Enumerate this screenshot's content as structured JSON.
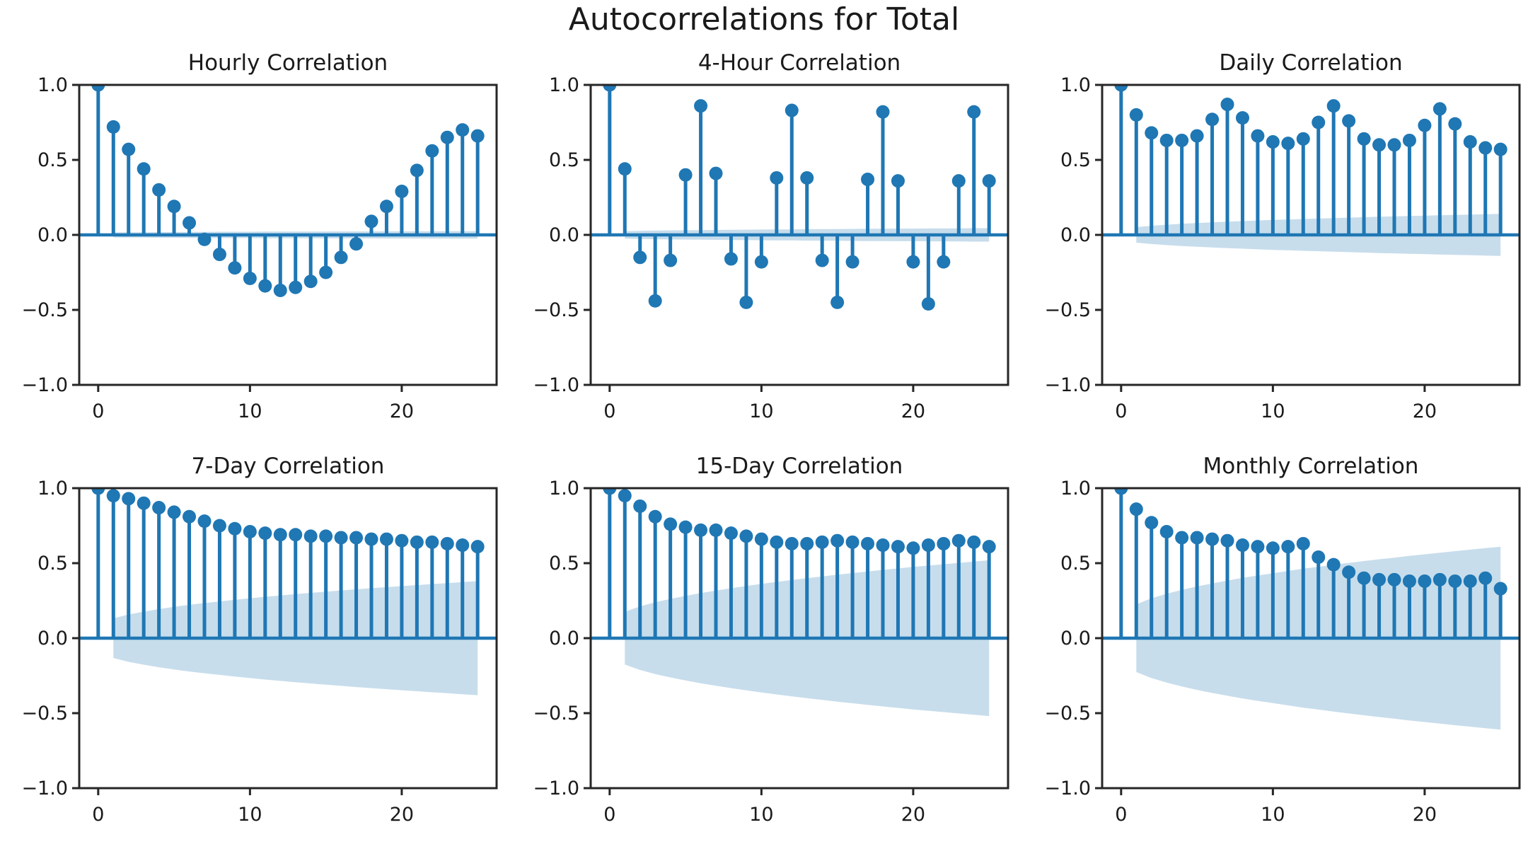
{
  "figure": {
    "suptitle": "Autocorrelations for Total",
    "colors": {
      "stem": "#1f77b4",
      "band": "#1f77b4",
      "band_opacity": 0.25,
      "text": "#1a1a1a",
      "spine": "#262626",
      "background": "#ffffff"
    }
  },
  "chart_data": [
    {
      "type": "stem",
      "title": "Hourly Correlation",
      "xlabel": "",
      "ylabel": "",
      "x": [
        0,
        1,
        2,
        3,
        4,
        5,
        6,
        7,
        8,
        9,
        10,
        11,
        12,
        13,
        14,
        15,
        16,
        17,
        18,
        19,
        20,
        21,
        22,
        23,
        24,
        25
      ],
      "values": [
        1.0,
        0.72,
        0.57,
        0.44,
        0.3,
        0.19,
        0.08,
        -0.03,
        -0.13,
        -0.22,
        -0.29,
        -0.34,
        -0.37,
        -0.35,
        -0.31,
        -0.25,
        -0.15,
        -0.06,
        0.09,
        0.19,
        0.29,
        0.43,
        0.56,
        0.65,
        0.7,
        0.66
      ],
      "ci": [
        0.015,
        0.017,
        0.018,
        0.018,
        0.019,
        0.019,
        0.02,
        0.02,
        0.021,
        0.021,
        0.021,
        0.022,
        0.022,
        0.022,
        0.022,
        0.023,
        0.023,
        0.023,
        0.023,
        0.024,
        0.024,
        0.024,
        0.024,
        0.025,
        0.025,
        0.025
      ],
      "xticks": [
        0,
        10,
        20
      ],
      "xtick_labels": [
        "0",
        "10",
        "20"
      ],
      "yticks": [
        1.0,
        0.5,
        0.0,
        -0.5,
        -1.0
      ],
      "ytick_labels": [
        "1.0",
        "0.5",
        "0.0",
        "−0.5",
        "−1.0"
      ],
      "xlim": [
        -1.25,
        26.25
      ],
      "ylim": [
        -1,
        1
      ],
      "grid": false,
      "legend": null
    },
    {
      "type": "stem",
      "title": "4-Hour Correlation",
      "xlabel": "",
      "ylabel": "",
      "x": [
        0,
        1,
        2,
        3,
        4,
        5,
        6,
        7,
        8,
        9,
        10,
        11,
        12,
        13,
        14,
        15,
        16,
        17,
        18,
        19,
        20,
        21,
        22,
        23,
        24,
        25
      ],
      "values": [
        1.0,
        0.44,
        -0.15,
        -0.44,
        -0.17,
        0.4,
        0.86,
        0.41,
        -0.16,
        -0.45,
        -0.18,
        0.38,
        0.83,
        0.38,
        -0.17,
        -0.45,
        -0.18,
        0.37,
        0.82,
        0.36,
        -0.18,
        -0.46,
        -0.18,
        0.36,
        0.82,
        0.36
      ],
      "ci": [
        0.02,
        0.025,
        0.027,
        0.029,
        0.03,
        0.031,
        0.032,
        0.033,
        0.034,
        0.035,
        0.036,
        0.037,
        0.037,
        0.038,
        0.039,
        0.039,
        0.04,
        0.041,
        0.041,
        0.042,
        0.042,
        0.043,
        0.043,
        0.044,
        0.045,
        0.045
      ],
      "xticks": [
        0,
        10,
        20
      ],
      "xtick_labels": [
        "0",
        "10",
        "20"
      ],
      "yticks": [
        1.0,
        0.5,
        0.0,
        -0.5,
        -1.0
      ],
      "ytick_labels": [
        "1.0",
        "0.5",
        "0.0",
        "−0.5",
        "−1.0"
      ],
      "xlim": [
        -1.25,
        26.25
      ],
      "ylim": [
        -1,
        1
      ],
      "grid": false,
      "legend": null
    },
    {
      "type": "stem",
      "title": "Daily Correlation",
      "xlabel": "",
      "ylabel": "",
      "x": [
        0,
        1,
        2,
        3,
        4,
        5,
        6,
        7,
        8,
        9,
        10,
        11,
        12,
        13,
        14,
        15,
        16,
        17,
        18,
        19,
        20,
        21,
        22,
        23,
        24,
        25
      ],
      "values": [
        1.0,
        0.8,
        0.68,
        0.63,
        0.63,
        0.66,
        0.77,
        0.87,
        0.78,
        0.66,
        0.62,
        0.61,
        0.64,
        0.75,
        0.86,
        0.76,
        0.64,
        0.6,
        0.6,
        0.63,
        0.73,
        0.84,
        0.74,
        0.62,
        0.58,
        0.57
      ],
      "ci": [
        0.03,
        0.052,
        0.061,
        0.068,
        0.074,
        0.079,
        0.084,
        0.088,
        0.092,
        0.096,
        0.1,
        0.103,
        0.106,
        0.109,
        0.112,
        0.115,
        0.118,
        0.121,
        0.123,
        0.126,
        0.128,
        0.131,
        0.133,
        0.135,
        0.138,
        0.14
      ],
      "xticks": [
        0,
        10,
        20
      ],
      "xtick_labels": [
        "0",
        "10",
        "20"
      ],
      "yticks": [
        1.0,
        0.5,
        0.0,
        -0.5,
        -1.0
      ],
      "ytick_labels": [
        "1.0",
        "0.5",
        "0.0",
        "−0.5",
        "−1.0"
      ],
      "xlim": [
        -1.25,
        26.25
      ],
      "ylim": [
        -1,
        1
      ],
      "grid": false,
      "legend": null
    },
    {
      "type": "stem",
      "title": "7-Day Correlation",
      "xlabel": "",
      "ylabel": "",
      "x": [
        0,
        1,
        2,
        3,
        4,
        5,
        6,
        7,
        8,
        9,
        10,
        11,
        12,
        13,
        14,
        15,
        16,
        17,
        18,
        19,
        20,
        21,
        22,
        23,
        24,
        25
      ],
      "values": [
        1.0,
        0.95,
        0.93,
        0.9,
        0.87,
        0.84,
        0.81,
        0.78,
        0.75,
        0.73,
        0.71,
        0.7,
        0.69,
        0.69,
        0.68,
        0.68,
        0.67,
        0.67,
        0.66,
        0.66,
        0.65,
        0.64,
        0.64,
        0.63,
        0.62,
        0.61
      ],
      "ci": [
        0.07,
        0.132,
        0.158,
        0.177,
        0.194,
        0.209,
        0.222,
        0.234,
        0.245,
        0.256,
        0.266,
        0.276,
        0.285,
        0.294,
        0.302,
        0.31,
        0.318,
        0.326,
        0.333,
        0.34,
        0.347,
        0.354,
        0.361,
        0.367,
        0.374,
        0.38
      ],
      "xticks": [
        0,
        10,
        20
      ],
      "xtick_labels": [
        "0",
        "10",
        "20"
      ],
      "yticks": [
        1.0,
        0.5,
        0.0,
        -0.5,
        -1.0
      ],
      "ytick_labels": [
        "1.0",
        "0.5",
        "0.0",
        "−0.5",
        "−1.0"
      ],
      "xlim": [
        -1.25,
        26.25
      ],
      "ylim": [
        -1,
        1
      ],
      "grid": false,
      "legend": null
    },
    {
      "type": "stem",
      "title": "15-Day Correlation",
      "xlabel": "",
      "ylabel": "",
      "x": [
        0,
        1,
        2,
        3,
        4,
        5,
        6,
        7,
        8,
        9,
        10,
        11,
        12,
        13,
        14,
        15,
        16,
        17,
        18,
        19,
        20,
        21,
        22,
        23,
        24,
        25
      ],
      "values": [
        1.0,
        0.95,
        0.88,
        0.81,
        0.76,
        0.74,
        0.72,
        0.72,
        0.7,
        0.68,
        0.66,
        0.64,
        0.63,
        0.63,
        0.64,
        0.65,
        0.64,
        0.63,
        0.62,
        0.61,
        0.6,
        0.62,
        0.63,
        0.65,
        0.64,
        0.61
      ],
      "ci": [
        0.09,
        0.176,
        0.212,
        0.239,
        0.262,
        0.282,
        0.301,
        0.317,
        0.333,
        0.348,
        0.362,
        0.375,
        0.388,
        0.4,
        0.412,
        0.423,
        0.434,
        0.445,
        0.455,
        0.465,
        0.475,
        0.484,
        0.493,
        0.502,
        0.511,
        0.52
      ],
      "xticks": [
        0,
        10,
        20
      ],
      "xtick_labels": [
        "0",
        "10",
        "20"
      ],
      "yticks": [
        1.0,
        0.5,
        0.0,
        -0.5,
        -1.0
      ],
      "ytick_labels": [
        "1.0",
        "0.5",
        "0.0",
        "−0.5",
        "−1.0"
      ],
      "xlim": [
        -1.25,
        26.25
      ],
      "ylim": [
        -1,
        1
      ],
      "grid": false,
      "legend": null
    },
    {
      "type": "stem",
      "title": "Monthly Correlation",
      "xlabel": "",
      "ylabel": "",
      "x": [
        0,
        1,
        2,
        3,
        4,
        5,
        6,
        7,
        8,
        9,
        10,
        11,
        12,
        13,
        14,
        15,
        16,
        17,
        18,
        19,
        20,
        21,
        22,
        23,
        24,
        25
      ],
      "values": [
        1.0,
        0.86,
        0.77,
        0.71,
        0.67,
        0.67,
        0.66,
        0.65,
        0.62,
        0.61,
        0.6,
        0.61,
        0.63,
        0.54,
        0.49,
        0.44,
        0.4,
        0.39,
        0.39,
        0.38,
        0.38,
        0.39,
        0.38,
        0.38,
        0.4,
        0.33
      ],
      "ci": [
        0.13,
        0.226,
        0.266,
        0.296,
        0.322,
        0.345,
        0.365,
        0.384,
        0.402,
        0.418,
        0.433,
        0.448,
        0.463,
        0.476,
        0.489,
        0.502,
        0.514,
        0.526,
        0.537,
        0.549,
        0.559,
        0.57,
        0.58,
        0.59,
        0.6,
        0.61
      ],
      "xticks": [
        0,
        10,
        20
      ],
      "xtick_labels": [
        "0",
        "10",
        "20"
      ],
      "yticks": [
        1.0,
        0.5,
        0.0,
        -0.5,
        -1.0
      ],
      "ytick_labels": [
        "1.0",
        "0.5",
        "0.0",
        "−0.5",
        "−1.0"
      ],
      "xlim": [
        -1.25,
        26.25
      ],
      "ylim": [
        -1,
        1
      ],
      "grid": false,
      "legend": null
    }
  ]
}
